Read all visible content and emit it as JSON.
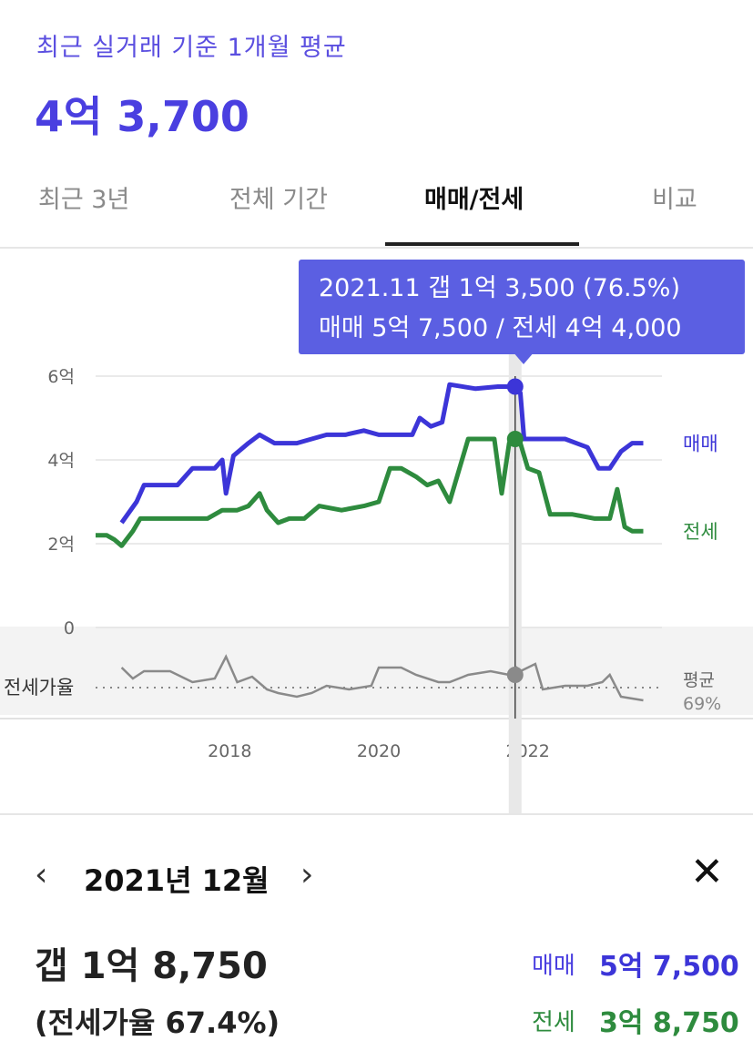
{
  "header": {
    "subtitle": "최근 실거래 기준 1개월 평균",
    "price": "4억 3,700"
  },
  "tabs": [
    {
      "label": "최근 3년",
      "active": false
    },
    {
      "label": "전체 기간",
      "active": false
    },
    {
      "label": "매매/전세",
      "active": true
    },
    {
      "label": "비교",
      "active": false
    }
  ],
  "colors": {
    "sale": "#3c35d8",
    "jeonse": "#2e8b3e",
    "ratio": "#7a7a7a",
    "accent": "#5b5fe2"
  },
  "tooltip": {
    "line1": "2021.11  갭 1억 3,500 (76.5%)",
    "line2": "매매 5억 7,500 / 전세 4억 4,000"
  },
  "chart_data": {
    "type": "line",
    "ylim": [
      0,
      6
    ],
    "y_ticks": [
      "6억",
      "4억",
      "2억",
      "0"
    ],
    "x_ticks": [
      "2018",
      "2020",
      "2022"
    ],
    "x_tick_values": [
      2018,
      2020,
      2022
    ],
    "xlim": [
      2016.2,
      2023.8
    ],
    "series": [
      {
        "name": "매매",
        "x": [
          2016.55,
          2016.75,
          2016.85,
          2017.0,
          2017.3,
          2017.5,
          2017.8,
          2017.9,
          2017.95,
          2018.05,
          2018.25,
          2018.4,
          2018.6,
          2018.9,
          2019.1,
          2019.3,
          2019.55,
          2019.8,
          2020.0,
          2020.3,
          2020.45,
          2020.55,
          2020.7,
          2020.85,
          2020.95,
          2021.3,
          2021.6,
          2021.8,
          2021.9,
          2021.95,
          2022.2,
          2022.5,
          2022.8,
          2022.95,
          2023.1,
          2023.25,
          2023.4,
          2023.55
        ],
        "values": [
          2.5,
          3.0,
          3.4,
          3.4,
          3.4,
          3.8,
          3.8,
          4.0,
          3.2,
          4.1,
          4.4,
          4.6,
          4.4,
          4.4,
          4.5,
          4.6,
          4.6,
          4.7,
          4.6,
          4.6,
          4.6,
          5.0,
          4.8,
          4.9,
          5.8,
          5.7,
          5.75,
          5.75,
          5.6,
          4.5,
          4.5,
          4.5,
          4.3,
          3.8,
          3.8,
          4.2,
          4.4,
          4.4
        ]
      },
      {
        "name": "전세",
        "x": [
          2016.2,
          2016.35,
          2016.45,
          2016.55,
          2016.7,
          2016.8,
          2017.0,
          2017.4,
          2017.7,
          2017.9,
          2018.1,
          2018.25,
          2018.4,
          2018.5,
          2018.65,
          2018.8,
          2019.0,
          2019.2,
          2019.5,
          2019.8,
          2020.0,
          2020.15,
          2020.3,
          2020.5,
          2020.65,
          2020.8,
          2020.95,
          2021.2,
          2021.4,
          2021.55,
          2021.65,
          2021.75,
          2021.8,
          2021.9,
          2022.0,
          2022.15,
          2022.3,
          2022.6,
          2022.9,
          2023.1,
          2023.2,
          2023.3,
          2023.4,
          2023.55
        ],
        "values": [
          2.2,
          2.2,
          2.1,
          1.95,
          2.3,
          2.6,
          2.6,
          2.6,
          2.6,
          2.8,
          2.8,
          2.9,
          3.2,
          2.8,
          2.5,
          2.6,
          2.6,
          2.9,
          2.8,
          2.9,
          3.0,
          3.8,
          3.8,
          3.6,
          3.4,
          3.5,
          3.0,
          4.5,
          4.5,
          4.5,
          3.2,
          4.4,
          4.5,
          4.4,
          3.8,
          3.7,
          2.7,
          2.7,
          2.6,
          2.6,
          3.3,
          2.4,
          2.3,
          2.3
        ]
      },
      {
        "name": "전세가율",
        "x": [
          2016.55,
          2016.7,
          2016.85,
          2017.2,
          2017.5,
          2017.8,
          2017.95,
          2018.1,
          2018.3,
          2018.5,
          2018.65,
          2018.9,
          2019.1,
          2019.3,
          2019.6,
          2019.9,
          2020.0,
          2020.3,
          2020.5,
          2020.8,
          2020.95,
          2021.2,
          2021.5,
          2021.75,
          2021.85,
          2021.9,
          2022.1,
          2022.2,
          2022.5,
          2022.8,
          2023.0,
          2023.1,
          2023.25,
          2023.4,
          2023.55
        ],
        "values": [
          80,
          74,
          78,
          78,
          72,
          74,
          86,
          72,
          75,
          68,
          66,
          64,
          66,
          70,
          68,
          70,
          80,
          80,
          76,
          72,
          72,
          76,
          78,
          76,
          80,
          78,
          82,
          68,
          70,
          70,
          72,
          76,
          64,
          63,
          62
        ]
      }
    ],
    "ratio_label": "전세가율",
    "ratio_avg_label": "평균",
    "ratio_avg_value": "69%",
    "ratio_avg": 69,
    "selected_x": 2021.83
  },
  "detail": {
    "month": "2021년 12월",
    "gap": "갭 1억 8,750",
    "ratio": "(전세가율 67.4%)",
    "sale_label": "매매",
    "sale_value": "5억 7,500",
    "jeonse_label": "전세",
    "jeonse_value": "3억 8,750"
  }
}
